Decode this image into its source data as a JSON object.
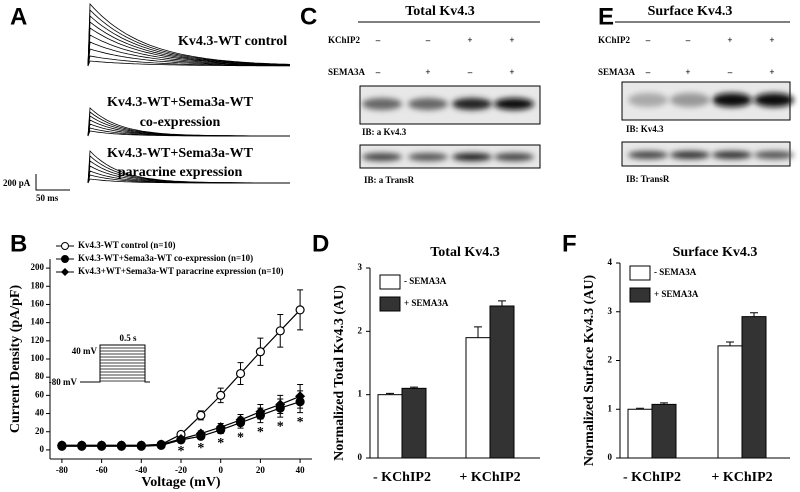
{
  "panels": {
    "A": {
      "letter": "A",
      "trace_labels": [
        "Kv4.3-WT control",
        "Kv4.3-WT+Sema3a-WT",
        "co-expression",
        "Kv4.3-WT+Sema3a-WT",
        "paracrine expression"
      ],
      "scale_current": "200 pA",
      "scale_time": "50 ms"
    },
    "C": {
      "letter": "C",
      "title": "Total Kv4.3",
      "row_labels": [
        "KChIP2",
        "SEMA3A"
      ],
      "kchip2": [
        "–",
        "–",
        "+",
        "+"
      ],
      "sema3a": [
        "–",
        "+",
        "–",
        "+"
      ],
      "blot_labels": [
        "IB: a Kv4.3",
        "IB: a TransR"
      ]
    },
    "E": {
      "letter": "E",
      "title": "Surface Kv4.3",
      "row_labels": [
        "KChIP2",
        "SEMA3A"
      ],
      "kchip2": [
        "–",
        "–",
        "+",
        "+"
      ],
      "sema3a": [
        "–",
        "+",
        "–",
        "+"
      ],
      "blot_labels": [
        "IB: Kv4.3",
        "IB: TransR"
      ]
    }
  },
  "chart_data": [
    {
      "type": "line",
      "panel": "B",
      "xlabel": "Voltage (mV)",
      "ylabel": "Current Density (pA/pF)",
      "x": [
        -80,
        -70,
        -60,
        -50,
        -40,
        -30,
        -20,
        -10,
        0,
        10,
        20,
        30,
        40
      ],
      "xlim": [
        -86,
        46
      ],
      "xticks": [
        -80,
        -60,
        -40,
        -20,
        0,
        20,
        40
      ],
      "ylim": [
        -10,
        210
      ],
      "yticks": [
        0,
        20,
        40,
        60,
        80,
        100,
        120,
        140,
        160,
        180,
        200
      ],
      "series": [
        {
          "name": "Kv4.3-WT control (n=10)",
          "color": "#000000",
          "marker": "open-circle",
          "values": [
            5,
            5,
            5,
            5,
            5,
            6,
            17,
            38,
            60,
            84,
            108,
            131,
            154
          ],
          "errors": [
            1,
            1,
            1,
            1,
            1,
            1,
            3,
            5,
            8,
            12,
            15,
            18,
            22
          ]
        },
        {
          "name": "Kv4.3-WT+Sema3a-WT co-expression (n=10)",
          "color": "#000000",
          "marker": "circle",
          "values": [
            4,
            4,
            4,
            4,
            4,
            5,
            11,
            15,
            22,
            30,
            38,
            46,
            53
          ],
          "errors": [
            1,
            1,
            1,
            1,
            1,
            1,
            2,
            3,
            4,
            6,
            8,
            10,
            12
          ]
        },
        {
          "name": "Kv4.3+WT+Sema3a-WT paracrine expression (n=10)",
          "color": "#000000",
          "marker": "diamond",
          "values": [
            5,
            5,
            5,
            5,
            5,
            6,
            12,
            18,
            25,
            33,
            42,
            50,
            59
          ],
          "errors": [
            1,
            1,
            1,
            1,
            1,
            1,
            2,
            3,
            4,
            6,
            8,
            10,
            13
          ]
        }
      ],
      "annotations": [
        {
          "x": -20,
          "text": "*"
        },
        {
          "x": -10,
          "text": "*"
        },
        {
          "x": 0,
          "text": "*"
        },
        {
          "x": 10,
          "text": "*"
        },
        {
          "x": 20,
          "text": "*"
        },
        {
          "x": 30,
          "text": "*"
        },
        {
          "x": 40,
          "text": "*"
        }
      ],
      "inset_labels": [
        "40 mV",
        "0.5 s",
        "-80 mV"
      ]
    },
    {
      "type": "bar",
      "panel": "D",
      "title": "Total Kv4.3",
      "ylabel": "Normalized Total Kv4.3 (AU)",
      "categories": [
        "- KChIP2",
        "+ KChIP2"
      ],
      "ylim": [
        0,
        3
      ],
      "yticks": [
        0,
        1,
        2,
        3
      ],
      "series": [
        {
          "name": "- SEMA3A",
          "color": "#ffffff",
          "values": [
            1.0,
            1.9
          ],
          "errors": [
            0.02,
            0.17
          ]
        },
        {
          "name": "+ SEMA3A",
          "color": "#333333",
          "values": [
            1.1,
            2.4
          ],
          "errors": [
            0.02,
            0.08
          ]
        }
      ]
    },
    {
      "type": "bar",
      "panel": "F",
      "title": "Surface Kv4.3",
      "ylabel": "Normalized Surface Kv4.3 (AU)",
      "categories": [
        "- KChIP2",
        "+ KChIP2"
      ],
      "ylim": [
        0,
        4
      ],
      "yticks": [
        0,
        1,
        2,
        3,
        4
      ],
      "series": [
        {
          "name": "- SEMA3A",
          "color": "#ffffff",
          "values": [
            1.0,
            2.3
          ],
          "errors": [
            0.02,
            0.08
          ]
        },
        {
          "name": "+ SEMA3A",
          "color": "#333333",
          "values": [
            1.1,
            2.9
          ],
          "errors": [
            0.03,
            0.08
          ]
        }
      ]
    }
  ]
}
